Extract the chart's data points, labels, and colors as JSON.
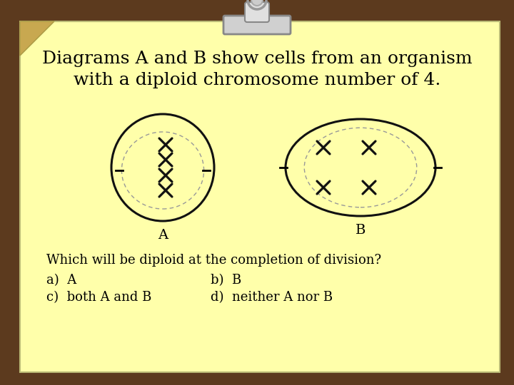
{
  "bg_wood_color": "#5c3a1e",
  "paper_color": "#ffffaa",
  "paper_corner_color": "#c8a850",
  "title_line1": "Diagrams A and B show cells from an organism",
  "title_line2": "with a diploid chromosome number of 4.",
  "question": "Which will be diploid at the completion of division?",
  "answer_a": "a)  A",
  "answer_b": "b)  B",
  "answer_c": "c)  both A and B",
  "answer_d": "d)  neither A nor B",
  "cell_A_label": "A",
  "cell_B_label": "B",
  "title_fontsize": 18,
  "body_fontsize": 13,
  "cell_outline_color": "#111111",
  "inner_dashed_color": "#999999",
  "chromosome_color": "#111111",
  "clip_body_color": "#cccccc",
  "clip_edge_color": "#888888"
}
